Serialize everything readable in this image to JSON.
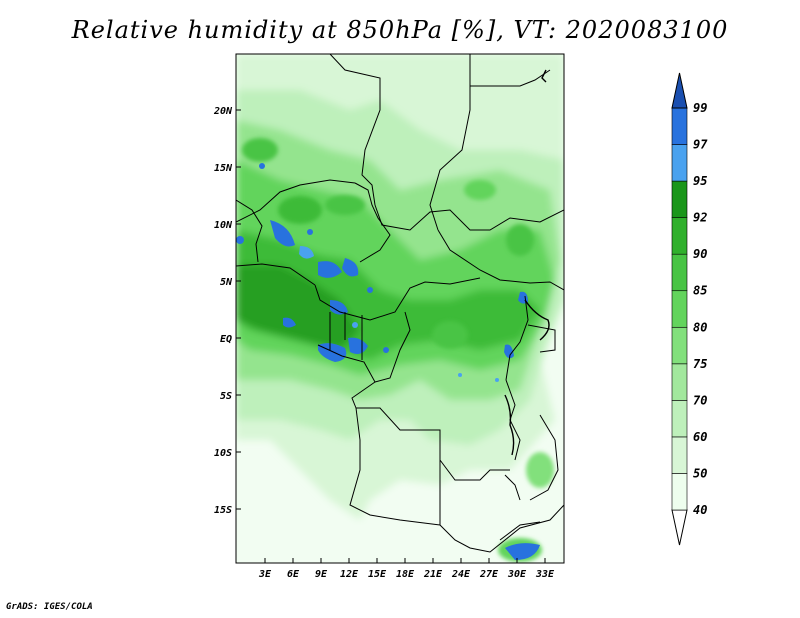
{
  "title": "Relative humidity at 850hPa [%], VT: 2020083100",
  "credit": "GrADS: IGES/COLA",
  "map": {
    "lat_labels": [
      "20N",
      "15N",
      "10N",
      "5N",
      "EQ",
      "5S",
      "10S",
      "15S"
    ],
    "lon_labels": [
      "3E",
      "6E",
      "9E",
      "12E",
      "15E",
      "18E",
      "21E",
      "24E",
      "27E",
      "30E",
      "33E"
    ]
  },
  "colorbar": {
    "levels": [
      "40",
      "50",
      "60",
      "70",
      "75",
      "80",
      "85",
      "90",
      "92",
      "95",
      "97",
      "99"
    ],
    "colors": [
      "#ffffff",
      "#eefeee",
      "#d8f6d6",
      "#bef0bb",
      "#a2e89d",
      "#82e07c",
      "#62d45c",
      "#48c444",
      "#30b02c",
      "#1a961a",
      "#4aa2ef",
      "#2872de",
      "#1a4fb0"
    ]
  }
}
